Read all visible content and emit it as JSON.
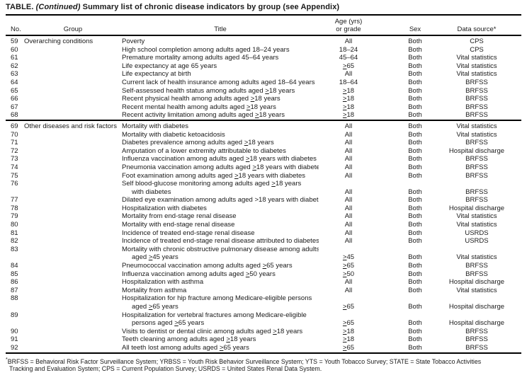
{
  "page": {
    "background_color": "#ffffff",
    "text_color": "#1a1a1a",
    "rule_color": "#000000"
  },
  "table": {
    "title": {
      "prefix": "TABLE.",
      "continued": "(Continued)",
      "rest": "Summary list of chronic disease indicators by group (see Appendix)"
    },
    "columns": [
      {
        "key": "no",
        "label": "No."
      },
      {
        "key": "group",
        "label": "Group"
      },
      {
        "key": "title",
        "label": "Title"
      },
      {
        "key": "age",
        "label_line1": "Age (yrs)",
        "label_line2": "or grade"
      },
      {
        "key": "sex",
        "label": "Sex"
      },
      {
        "key": "source",
        "label": "Data source*"
      }
    ],
    "sections": [
      {
        "group_label": "Overarching conditions",
        "rows": [
          {
            "no": "59",
            "group": "Overarching conditions",
            "title_lines": [
              "Poverty"
            ],
            "age": "All",
            "sex": "Both",
            "source": "CPS"
          },
          {
            "no": "60",
            "title_lines": [
              "High school completion among adults aged 18–24 years"
            ],
            "age": "18–24",
            "sex": "Both",
            "source": "CPS"
          },
          {
            "no": "61",
            "title_lines": [
              "Premature mortality among adults aged 45–64 years"
            ],
            "age": "45–64",
            "sex": "Both",
            "source": "Vital statistics"
          },
          {
            "no": "62",
            "title_lines": [
              "Life expectancy at age 65 years"
            ],
            "age": "≥65",
            "sex": "Both",
            "source": "Vital statistics"
          },
          {
            "no": "63",
            "title_lines": [
              "Life expectancy at birth"
            ],
            "age": "All",
            "sex": "Both",
            "source": "Vital statistics"
          },
          {
            "no": "64",
            "title_lines": [
              "Current lack of health insurance among adults aged 18–64 years"
            ],
            "age": "18–64",
            "sex": "Both",
            "source": "BRFSS"
          },
          {
            "no": "65",
            "title_lines": [
              "Self-assessed health status among adults aged ≥18 years"
            ],
            "age": "≥18",
            "sex": "Both",
            "source": "BRFSS"
          },
          {
            "no": "66",
            "title_lines": [
              "Recent physical health among adults aged ≥18 years"
            ],
            "age": "≥18",
            "sex": "Both",
            "source": "BRFSS"
          },
          {
            "no": "67",
            "title_lines": [
              "Recent mental health among adults aged ≥18 years"
            ],
            "age": "≥18",
            "sex": "Both",
            "source": "BRFSS"
          },
          {
            "no": "68",
            "title_lines": [
              "Recent activity limitation among adults aged ≥18 years"
            ],
            "age": "≥18",
            "sex": "Both",
            "source": "BRFSS"
          }
        ]
      },
      {
        "group_label": "Other diseases and risk factors",
        "rows": [
          {
            "no": "69",
            "group": "Other diseases and risk factors",
            "title_lines": [
              "Mortality with diabetes"
            ],
            "age": "All",
            "sex": "Both",
            "source": "Vital statistics"
          },
          {
            "no": "70",
            "title_lines": [
              "Mortality with diabetic ketoacidosis"
            ],
            "age": "All",
            "sex": "Both",
            "source": "Vital statistics"
          },
          {
            "no": "71",
            "title_lines": [
              "Diabetes prevalence among adults aged ≥18 years"
            ],
            "age": "All",
            "sex": "Both",
            "source": "BRFSS"
          },
          {
            "no": "72",
            "title_lines": [
              "Amputation of a lower extremity attributable to diabetes"
            ],
            "age": "All",
            "sex": "Both",
            "source": "Hospital discharge"
          },
          {
            "no": "73",
            "title_lines": [
              "Influenza vaccination among adults aged ≥18 years with diabetes"
            ],
            "age": "All",
            "sex": "Both",
            "source": "BRFSS"
          },
          {
            "no": "74",
            "title_lines": [
              "Pneumonia vaccination among adults aged ≥18 years with diabetes"
            ],
            "age": "All",
            "sex": "Both",
            "source": "BRFSS"
          },
          {
            "no": "75",
            "title_lines": [
              "Foot examination among adults aged ≥18 years with diabetes"
            ],
            "age": "All",
            "sex": "Both",
            "source": "BRFSS"
          },
          {
            "no": "76",
            "title_lines": [
              "Self blood-glucose monitoring among adults aged ≥18 years",
              "with diabetes"
            ],
            "age": "All",
            "sex": "Both",
            "source": "BRFSS"
          },
          {
            "no": "77",
            "title_lines": [
              "Dilated eye examination among adults aged >18 years with diabetes"
            ],
            "age": "All",
            "sex": "Both",
            "source": "BRFSS"
          },
          {
            "no": "78",
            "title_lines": [
              "Hospitalization with diabetes"
            ],
            "age": "All",
            "sex": "Both",
            "source": "Hospital discharge"
          },
          {
            "no": "79",
            "title_lines": [
              "Mortality from end-stage renal disease"
            ],
            "age": "All",
            "sex": "Both",
            "source": "Vital statistics"
          },
          {
            "no": "80",
            "title_lines": [
              "Mortality with end-stage renal disease"
            ],
            "age": "All",
            "sex": "Both",
            "source": "Vital statistics"
          },
          {
            "no": "81",
            "title_lines": [
              "Incidence of treated end-stage renal disease"
            ],
            "age": "All",
            "sex": "Both",
            "source": "USRDS"
          },
          {
            "no": "82",
            "title_lines": [
              "Incidence of treated end-stage renal disease attributed to diabetes"
            ],
            "age": "All",
            "sex": "Both",
            "source": "USRDS"
          },
          {
            "no": "83",
            "title_lines": [
              "Mortality with chronic obstructive pulmonary disease among adults",
              "aged ≥45 years"
            ],
            "age": "≥45",
            "sex": "Both",
            "source": "Vital statistics"
          },
          {
            "no": "84",
            "title_lines": [
              "Pneumococcal vaccination among adults aged ≥65 years"
            ],
            "age": "≥65",
            "sex": "Both",
            "source": "BRFSS"
          },
          {
            "no": "85",
            "title_lines": [
              "Influenza vaccination among adults aged ≥50 years"
            ],
            "age": "≥50",
            "sex": "Both",
            "source": "BRFSS"
          },
          {
            "no": "86",
            "title_lines": [
              "Hospitalization with asthma"
            ],
            "age": "All",
            "sex": "Both",
            "source": "Hospital discharge"
          },
          {
            "no": "87",
            "title_lines": [
              "Mortality from asthma"
            ],
            "age": "All",
            "sex": "Both",
            "source": "Vital statistics"
          },
          {
            "no": "88",
            "title_lines": [
              "Hospitalization for hip fracture among Medicare-eligible persons",
              "aged ≥65 years"
            ],
            "age": "≥65",
            "sex": "Both",
            "source": "Hospital discharge"
          },
          {
            "no": "89",
            "title_lines": [
              "Hospitalization for vertebral fractures among Medicare-eligible",
              "persons aged ≥65 years"
            ],
            "age": "≥65",
            "sex": "Both",
            "source": "Hospital discharge"
          },
          {
            "no": "90",
            "title_lines": [
              "Visits to dentist or dental clinic among adults aged ≥18 years"
            ],
            "age": "≥18",
            "sex": "Both",
            "source": "BRFSS"
          },
          {
            "no": "91",
            "title_lines": [
              "Teeth cleaning among adults aged ≥18 years"
            ],
            "age": "≥18",
            "sex": "Both",
            "source": "BRFSS"
          },
          {
            "no": "92",
            "title_lines": [
              "All teeth lost among adults aged ≥65 years"
            ],
            "age": "≥65",
            "sex": "Both",
            "source": "BRFSS"
          }
        ]
      }
    ],
    "footnote": {
      "marker": "*",
      "line1": "BRFSS = Behavioral Risk Factor Surveillance System; YRBSS = Youth Risk Behavior Surveillance System; YTS = Youth Tobacco Survey; STATE = State Tobacco Activities",
      "line2": "Tracking and Evaluation System; CPS = Current Population Survey; USRDS = United States Renal Data System."
    }
  }
}
